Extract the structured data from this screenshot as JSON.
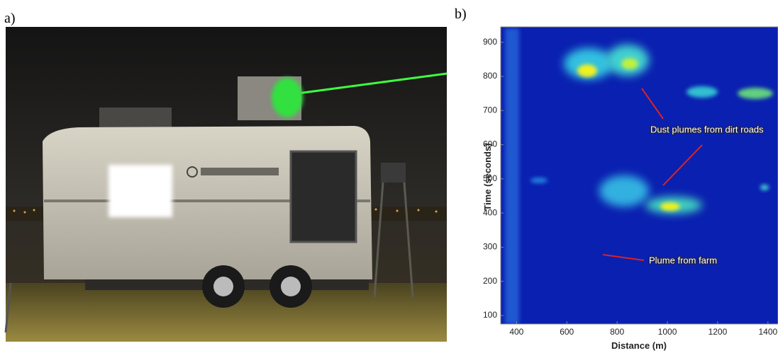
{
  "panel_a": {
    "label": "a)"
  },
  "panel_b": {
    "label": "b)"
  },
  "chart_data": {
    "type": "heatmap",
    "xlabel": "Distance (m)",
    "ylabel": "Time (seconds)",
    "xlim": [
      337,
      1440
    ],
    "ylim": [
      75,
      945
    ],
    "xticks": [
      400,
      600,
      800,
      1000,
      1200,
      1400
    ],
    "yticks": [
      100,
      200,
      300,
      400,
      500,
      600,
      700,
      800,
      900
    ],
    "annotations": [
      "Dust plumes from dirt roads",
      "Plume from farm"
    ]
  }
}
